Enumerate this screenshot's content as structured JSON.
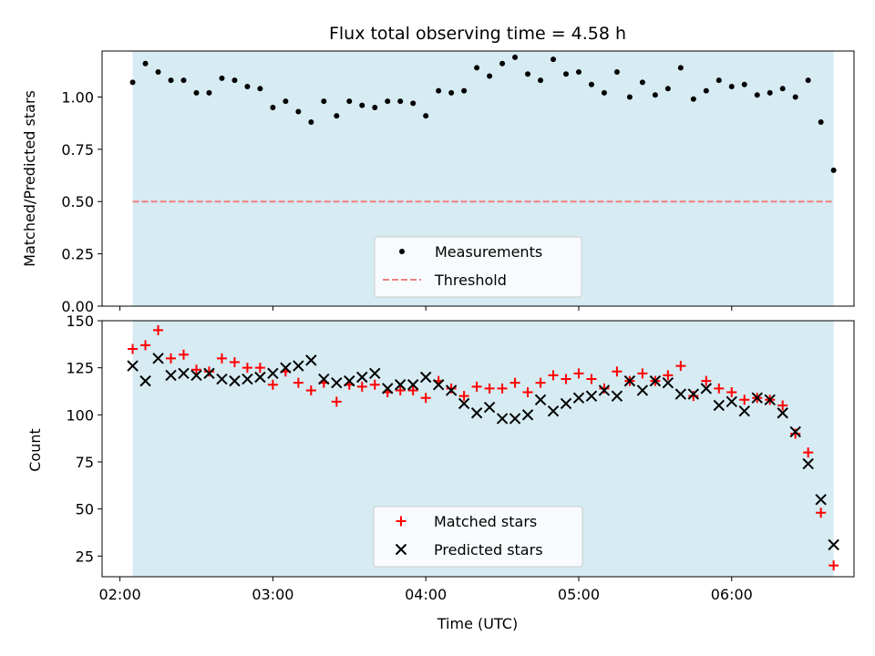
{
  "chart_data": [
    {
      "type": "scatter",
      "title": "Flux total observing time = 4.58 h",
      "ylabel": "Matched/Predicted stars",
      "xlabel": "",
      "xlim": [
        "01:53",
        "06:48"
      ],
      "ylim": [
        0,
        1.22
      ],
      "yticks": [
        0.0,
        0.25,
        0.5,
        0.75,
        1.0
      ],
      "ytick_labels": [
        "0.00",
        "0.25",
        "0.50",
        "0.75",
        "1.00"
      ],
      "shaded_region": {
        "x_start": "02:05",
        "x_end": "06:40",
        "color": "#add8e6"
      },
      "threshold": {
        "name": "Threshold",
        "y": 0.5,
        "color": "#f08080",
        "style": "dashed"
      },
      "legend": {
        "placement": "lower center",
        "entries": [
          "Measurements",
          "Threshold"
        ]
      },
      "series": [
        {
          "name": "Measurements",
          "marker": "dot",
          "color": "#000000",
          "x": [
            "02:05",
            "02:10",
            "02:15",
            "02:20",
            "02:25",
            "02:30",
            "02:35",
            "02:40",
            "02:45",
            "02:50",
            "02:55",
            "03:00",
            "03:05",
            "03:10",
            "03:15",
            "03:20",
            "03:25",
            "03:30",
            "03:35",
            "03:40",
            "03:45",
            "03:50",
            "03:55",
            "04:00",
            "04:05",
            "04:10",
            "04:15",
            "04:20",
            "04:25",
            "04:30",
            "04:35",
            "04:40",
            "04:45",
            "04:50",
            "04:55",
            "05:00",
            "05:05",
            "05:10",
            "05:15",
            "05:20",
            "05:25",
            "05:30",
            "05:35",
            "05:40",
            "05:45",
            "05:50",
            "05:55",
            "06:00",
            "06:05",
            "06:10",
            "06:15",
            "06:20",
            "06:25",
            "06:30",
            "06:35",
            "06:40"
          ],
          "y": [
            1.07,
            1.16,
            1.12,
            1.08,
            1.08,
            1.02,
            1.02,
            1.09,
            1.08,
            1.05,
            1.04,
            0.95,
            0.98,
            0.93,
            0.88,
            0.98,
            0.91,
            0.98,
            0.96,
            0.95,
            0.98,
            0.98,
            0.97,
            0.91,
            1.03,
            1.02,
            1.03,
            1.14,
            1.1,
            1.16,
            1.19,
            1.11,
            1.08,
            1.18,
            1.11,
            1.12,
            1.06,
            1.02,
            1.12,
            1.0,
            1.07,
            1.01,
            1.04,
            1.14,
            0.99,
            1.03,
            1.08,
            1.05,
            1.06,
            1.01,
            1.02,
            1.04,
            1.0,
            1.08,
            0.88,
            0.65
          ]
        }
      ]
    },
    {
      "type": "scatter",
      "title": "",
      "ylabel": "Count",
      "xlabel": "Time (UTC)",
      "xlim": [
        "01:53",
        "06:48"
      ],
      "xticks": [
        "02:00",
        "03:00",
        "04:00",
        "05:00",
        "06:00"
      ],
      "ylim": [
        14,
        150
      ],
      "yticks": [
        25,
        50,
        75,
        100,
        125,
        150
      ],
      "ytick_labels": [
        "25",
        "50",
        "75",
        "100",
        "125",
        "150"
      ],
      "shaded_region": {
        "x_start": "02:05",
        "x_end": "06:40",
        "color": "#add8e6"
      },
      "legend": {
        "placement": "lower center",
        "entries": [
          "Matched stars",
          "Predicted stars"
        ]
      },
      "series": [
        {
          "name": "Matched stars",
          "marker": "plus",
          "color": "#ff0000",
          "x": [
            "02:05",
            "02:10",
            "02:15",
            "02:20",
            "02:25",
            "02:30",
            "02:35",
            "02:40",
            "02:45",
            "02:50",
            "02:55",
            "03:00",
            "03:05",
            "03:10",
            "03:15",
            "03:20",
            "03:25",
            "03:30",
            "03:35",
            "03:40",
            "03:45",
            "03:50",
            "03:55",
            "04:00",
            "04:05",
            "04:10",
            "04:15",
            "04:20",
            "04:25",
            "04:30",
            "04:35",
            "04:40",
            "04:45",
            "04:50",
            "04:55",
            "05:00",
            "05:05",
            "05:10",
            "05:15",
            "05:20",
            "05:25",
            "05:30",
            "05:35",
            "05:40",
            "05:45",
            "05:50",
            "05:55",
            "06:00",
            "06:05",
            "06:10",
            "06:15",
            "06:20",
            "06:25",
            "06:30",
            "06:35",
            "06:40"
          ],
          "y": [
            135,
            137,
            145,
            130,
            132,
            124,
            123,
            130,
            128,
            125,
            125,
            116,
            123,
            117,
            113,
            117,
            107,
            116,
            115,
            116,
            112,
            113,
            113,
            109,
            118,
            114,
            110,
            115,
            114,
            114,
            117,
            112,
            117,
            121,
            119,
            122,
            119,
            114,
            123,
            118,
            122,
            118,
            121,
            126,
            110,
            118,
            114,
            112,
            108,
            109,
            108,
            105,
            90,
            80,
            48,
            20
          ]
        },
        {
          "name": "Predicted stars",
          "marker": "x",
          "color": "#000000",
          "x": [
            "02:05",
            "02:10",
            "02:15",
            "02:20",
            "02:25",
            "02:30",
            "02:35",
            "02:40",
            "02:45",
            "02:50",
            "02:55",
            "03:00",
            "03:05",
            "03:10",
            "03:15",
            "03:20",
            "03:25",
            "03:30",
            "03:35",
            "03:40",
            "03:45",
            "03:50",
            "03:55",
            "04:00",
            "04:05",
            "04:10",
            "04:15",
            "04:20",
            "04:25",
            "04:30",
            "04:35",
            "04:40",
            "04:45",
            "04:50",
            "04:55",
            "05:00",
            "05:05",
            "05:10",
            "05:15",
            "05:20",
            "05:25",
            "05:30",
            "05:35",
            "05:40",
            "05:45",
            "05:50",
            "05:55",
            "06:00",
            "06:05",
            "06:10",
            "06:15",
            "06:20",
            "06:25",
            "06:30",
            "06:35",
            "06:40"
          ],
          "y": [
            126,
            118,
            130,
            121,
            122,
            121,
            122,
            119,
            118,
            119,
            120,
            122,
            125,
            126,
            129,
            119,
            117,
            118,
            120,
            122,
            114,
            116,
            116,
            120,
            116,
            113,
            106,
            101,
            104,
            98,
            98,
            100,
            108,
            102,
            106,
            109,
            110,
            113,
            110,
            118,
            113,
            118,
            117,
            111,
            111,
            114,
            105,
            107,
            102,
            109,
            108,
            101,
            91,
            74,
            55,
            31
          ]
        }
      ]
    }
  ]
}
